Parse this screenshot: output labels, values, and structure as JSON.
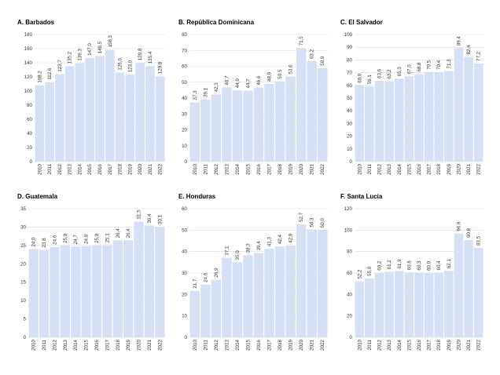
{
  "colors": {
    "bar": "#d6e0f5",
    "grid": "#d9d9d9",
    "text": "#333333"
  },
  "chart_data": [
    {
      "type": "bar",
      "title": "A. Barbados",
      "categories": [
        "2010",
        "2011",
        "2012",
        "2013",
        "2014",
        "2015",
        "2016",
        "2017",
        "2018",
        "2019",
        "2020",
        "2021",
        "2022"
      ],
      "values": [
        108.2,
        112.6,
        123.7,
        135.2,
        139.3,
        147.0,
        149.5,
        158.3,
        126.0,
        123.0,
        139.8,
        135.4,
        120.8
      ],
      "value_labels": [
        "108,2",
        "112,6",
        "123,7",
        "135,2",
        "139,3",
        "147,0",
        "149,5",
        "158,3",
        "126,0",
        "123,0",
        "139,8",
        "135,4",
        "120,8"
      ],
      "ylim": [
        0,
        180
      ],
      "yticks": [
        0,
        20,
        40,
        60,
        80,
        100,
        120,
        140,
        160,
        180
      ],
      "grid": true,
      "legend": "none"
    },
    {
      "type": "bar",
      "title": "B. República Dominicana",
      "categories": [
        "2010",
        "2011",
        "2012",
        "2013",
        "2014",
        "2015",
        "2016",
        "2017",
        "2018",
        "2019",
        "2020",
        "2021",
        "2022"
      ],
      "values": [
        37.3,
        39.1,
        42.3,
        46.7,
        44.9,
        44.7,
        46.6,
        48.9,
        50.5,
        53.6,
        71.5,
        63.2,
        58.9
      ],
      "value_labels": [
        "37,3",
        "39,1",
        "42,3",
        "46,7",
        "44,9",
        "44,7",
        "46,6",
        "48,9",
        "50,5",
        "53,6",
        "71,5",
        "63,2",
        "58,9"
      ],
      "ylim": [
        0,
        80
      ],
      "yticks": [
        0,
        10,
        20,
        30,
        40,
        50,
        60,
        70,
        80
      ],
      "grid": true,
      "legend": "none"
    },
    {
      "type": "bar",
      "title": "C. El Salvador",
      "categories": [
        "2010",
        "2011",
        "2012",
        "2013",
        "2014",
        "2015",
        "2016",
        "2017",
        "2018",
        "2019",
        "2020",
        "2021",
        "2022"
      ],
      "values": [
        60.0,
        59.1,
        63.6,
        63.2,
        65.3,
        67.0,
        68.8,
        70.5,
        70.4,
        71.3,
        89.4,
        82.4,
        77.2
      ],
      "value_labels": [
        "60,0",
        "59,1",
        "63,6",
        "63,2",
        "65,3",
        "67,0",
        "68,8",
        "70,5",
        "70,4",
        "71,3",
        "89,4",
        "82,4",
        "77,2"
      ],
      "ylim": [
        0,
        100
      ],
      "yticks": [
        0,
        10,
        20,
        30,
        40,
        50,
        60,
        70,
        80,
        90,
        100
      ],
      "grid": true,
      "legend": "none"
    },
    {
      "type": "bar",
      "title": "D. Guatemala",
      "categories": [
        "2010",
        "2011",
        "2012",
        "2013",
        "2014",
        "2015",
        "2016",
        "2017",
        "2018",
        "2019",
        "2020",
        "2021",
        "2022"
      ],
      "values": [
        24.0,
        23.8,
        24.6,
        25.0,
        24.7,
        24.8,
        25.0,
        25.1,
        26.4,
        26.4,
        31.5,
        30.4,
        30.1
      ],
      "value_labels": [
        "24,0",
        "23,8",
        "24,6",
        "25,0",
        "24,7",
        "24,8",
        "25,0",
        "25,1",
        "26,4",
        "26,4",
        "31,5",
        "30,4",
        "30,1"
      ],
      "ylim": [
        0,
        35
      ],
      "yticks": [
        0,
        5,
        10,
        15,
        20,
        25,
        30,
        35
      ],
      "grid": true,
      "legend": "none"
    },
    {
      "type": "bar",
      "title": "E. Honduras",
      "categories": [
        "2010",
        "2011",
        "2012",
        "2013",
        "2014",
        "2015",
        "2016",
        "2017",
        "2018",
        "2019",
        "2020",
        "2021",
        "2022"
      ],
      "values": [
        21.7,
        24.6,
        26.9,
        37.1,
        35.0,
        38.3,
        39.4,
        41.3,
        42.4,
        42.9,
        52.7,
        50.3,
        50.0
      ],
      "value_labels": [
        "21,7",
        "24,6",
        "26,9",
        "37,1",
        "35,0",
        "38,3",
        "39,4",
        "41,3",
        "42,4",
        "42,9",
        "52,7",
        "50,3",
        "50,0"
      ],
      "ylim": [
        0,
        60
      ],
      "yticks": [
        0,
        10,
        20,
        30,
        40,
        50,
        60
      ],
      "grid": true,
      "legend": "none"
    },
    {
      "type": "bar",
      "title": "F. Santa Lucía",
      "categories": [
        "2010",
        "2011",
        "2012",
        "2013",
        "2014",
        "2015",
        "2016",
        "2017",
        "2018",
        "2019",
        "2020",
        "2021",
        "2022"
      ],
      "values": [
        52.2,
        55.0,
        60.2,
        61.2,
        61.9,
        60.6,
        60.3,
        60.0,
        60.4,
        62.1,
        96.9,
        90.8,
        83.5
      ],
      "value_labels": [
        "52,2",
        "55,0",
        "60,2",
        "61,2",
        "61,9",
        "60,6",
        "60,3",
        "60,0",
        "60,4",
        "62,1",
        "96,9",
        "90,8",
        "83,5"
      ],
      "ylim": [
        0,
        120
      ],
      "yticks": [
        0,
        20,
        40,
        60,
        80,
        100,
        120
      ],
      "grid": true,
      "legend": "none"
    }
  ]
}
